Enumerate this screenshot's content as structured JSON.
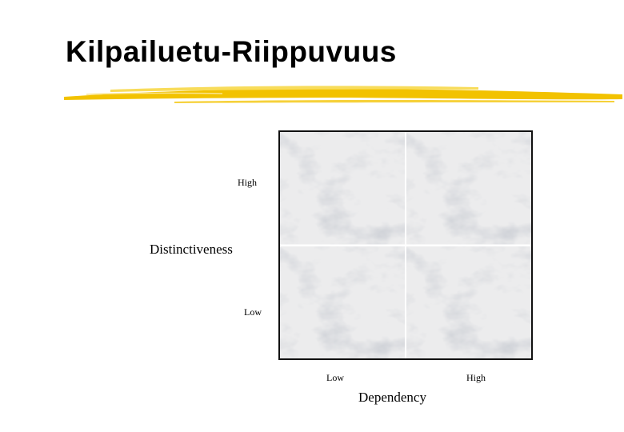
{
  "title": "Kilpailuetu-Riippuvuus",
  "colors": {
    "accent": "#f2c200",
    "accent_light": "#f8dc5a",
    "marble": "#e9e9ea",
    "vein": "#b9bcc2"
  },
  "matrix": {
    "y_axis": {
      "high": "High",
      "title": "Distinctiveness",
      "low": "Low"
    },
    "x_axis": {
      "low": "Low",
      "high": "High",
      "title": "Dependency"
    },
    "quadrants": [
      "top-left",
      "top-right",
      "bottom-left",
      "bottom-right"
    ]
  }
}
